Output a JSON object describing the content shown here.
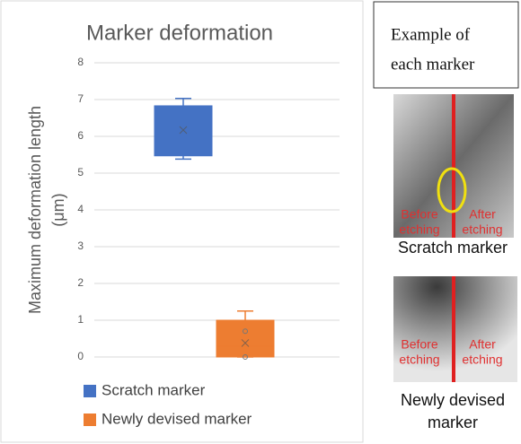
{
  "chart_data": {
    "type": "box",
    "title": "Marker deformation",
    "y_label": [
      "Maximum deformation length",
      "(μm)"
    ],
    "ylim": [
      0,
      8
    ],
    "yticks": [
      0,
      1,
      2,
      3,
      4,
      5,
      6,
      7,
      8
    ],
    "grid": true,
    "series": [
      {
        "name": "Scratch marker",
        "color": "#4472c4",
        "min": 5.38,
        "q1": 5.47,
        "median": 6.2,
        "q3": 6.83,
        "max": 7.03,
        "mean": 6.17
      },
      {
        "name": "Newly devised marker",
        "color": "#ed7d31",
        "min": 0,
        "q1": 0,
        "median": 0.3,
        "q3": 1.0,
        "max": 1.25,
        "mean": 0.38,
        "points": [
          0.7,
          0
        ]
      }
    ]
  },
  "examples": {
    "title": [
      "Example of",
      "each marker"
    ],
    "items": [
      {
        "before": [
          "Before",
          "etching"
        ],
        "after": [
          "After",
          "etching"
        ],
        "caption": [
          "Scratch marker"
        ]
      },
      {
        "before": [
          "Before",
          "etching"
        ],
        "after": [
          "After",
          "etching"
        ],
        "caption": [
          "Newly devised",
          "marker"
        ]
      }
    ]
  }
}
